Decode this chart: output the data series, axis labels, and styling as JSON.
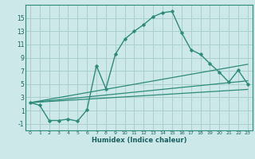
{
  "xlabel": "Humidex (Indice chaleur)",
  "background_color": "#cce8e8",
  "grid_color": "#aacfcf",
  "line_color": "#2e8b7a",
  "text_color": "#1a6060",
  "xlim": [
    -0.5,
    23.5
  ],
  "ylim": [
    -2,
    17
  ],
  "xticks": [
    0,
    1,
    2,
    3,
    4,
    5,
    6,
    7,
    8,
    9,
    10,
    11,
    12,
    13,
    14,
    15,
    16,
    17,
    18,
    19,
    20,
    21,
    22,
    23
  ],
  "yticks": [
    -1,
    1,
    3,
    5,
    7,
    9,
    11,
    13,
    15
  ],
  "series1_x": [
    0,
    1,
    2,
    3,
    4,
    5,
    6,
    7,
    8,
    9,
    10,
    11,
    12,
    13,
    14,
    15,
    16,
    17,
    18,
    19,
    20,
    21,
    22,
    23
  ],
  "series1_y": [
    2.2,
    1.8,
    -0.5,
    -0.5,
    -0.3,
    -0.6,
    1.1,
    7.8,
    4.3,
    9.5,
    11.8,
    13.0,
    14.0,
    15.2,
    15.8,
    16.0,
    12.8,
    10.2,
    9.5,
    8.1,
    6.8,
    5.3,
    7.1,
    5.0
  ],
  "series2_x": [
    0,
    23
  ],
  "series2_y": [
    2.2,
    8.0
  ],
  "series3_x": [
    0,
    23
  ],
  "series3_y": [
    2.2,
    5.5
  ],
  "series4_x": [
    0,
    23
  ],
  "series4_y": [
    2.2,
    4.2
  ]
}
